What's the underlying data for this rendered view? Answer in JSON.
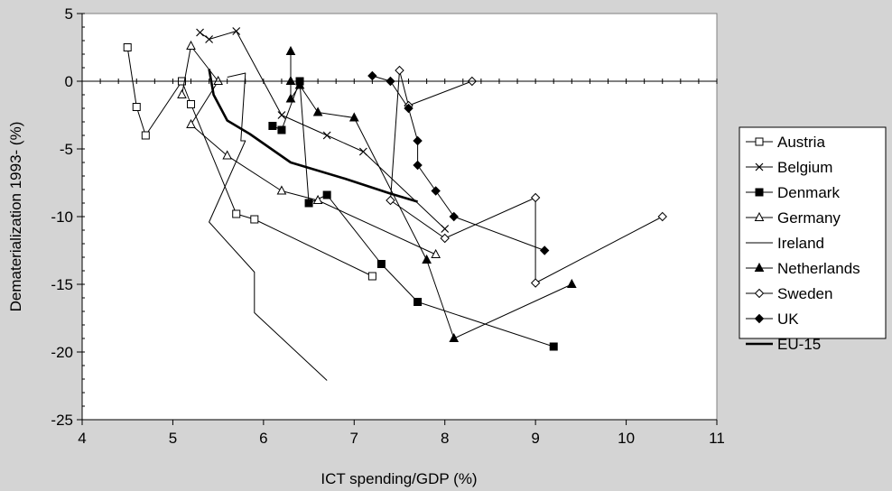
{
  "chart_data": {
    "type": "line",
    "title": "",
    "xlabel": "ICT spending/GDP (%)",
    "ylabel": "Dematerialization 1993- (%)",
    "xlim": [
      4,
      11
    ],
    "ylim": [
      -25,
      5
    ],
    "xticks": [
      4,
      5,
      6,
      7,
      8,
      9,
      10,
      11
    ],
    "yticks": [
      5,
      0,
      -5,
      -10,
      -15,
      -20,
      -25
    ],
    "grid": false,
    "legend_position": "right",
    "plot_background": "#ffffff",
    "page_background": "#d4d4d4",
    "series": [
      {
        "name": "Austria",
        "marker": "square-open",
        "line_width": 1,
        "x": [
          4.5,
          4.6,
          4.7,
          5.1,
          5.2,
          5.7,
          5.9,
          7.2
        ],
        "y": [
          2.5,
          -1.9,
          -4.0,
          0.0,
          -1.7,
          -9.8,
          -10.2,
          -14.4
        ]
      },
      {
        "name": "Belgium",
        "marker": "cross",
        "line_width": 1,
        "x": [
          5.3,
          5.4,
          5.7,
          6.2,
          6.7,
          7.1,
          8.0
        ],
        "y": [
          3.6,
          3.1,
          3.7,
          -2.5,
          -4.0,
          -5.2,
          -10.9
        ]
      },
      {
        "name": "Denmark",
        "marker": "square-filled",
        "line_width": 1,
        "x": [
          6.1,
          6.2,
          6.4,
          6.5,
          6.7,
          7.3,
          7.7,
          9.2
        ],
        "y": [
          -3.3,
          -3.6,
          0.0,
          -9.0,
          -8.4,
          -13.5,
          -16.3,
          -19.6
        ]
      },
      {
        "name": "Germany",
        "marker": "triangle-open",
        "line_width": 1,
        "x": [
          5.1,
          5.2,
          5.5,
          5.2,
          5.6,
          6.2,
          6.6,
          7.9
        ],
        "y": [
          -1.0,
          2.6,
          0.0,
          -3.2,
          -5.5,
          -8.1,
          -8.8,
          -12.8
        ]
      },
      {
        "name": "Ireland",
        "marker": "none",
        "line_width": 1,
        "x": [
          5.6,
          5.8,
          5.75,
          5.8,
          5.4,
          5.9,
          5.9,
          6.7
        ],
        "y": [
          0.3,
          0.6,
          -4.4,
          -4.4,
          -10.4,
          -14.1,
          -17.1,
          -22.1
        ]
      },
      {
        "name": "Netherlands",
        "marker": "triangle-filled",
        "line_width": 1,
        "x": [
          6.3,
          6.3,
          6.3,
          6.4,
          6.6,
          7.0,
          7.8,
          8.1,
          9.4
        ],
        "y": [
          0.0,
          2.2,
          -1.3,
          -0.3,
          -2.3,
          -2.7,
          -13.2,
          -19.0,
          -15.0
        ]
      },
      {
        "name": "Sweden",
        "marker": "diamond-open",
        "line_width": 1,
        "x": [
          8.3,
          7.6,
          7.5,
          7.4,
          8.0,
          9.0,
          9.0,
          10.4
        ],
        "y": [
          0.0,
          -1.8,
          0.8,
          -8.8,
          -11.6,
          -8.6,
          -14.9,
          -10.0
        ]
      },
      {
        "name": "UK",
        "marker": "diamond-filled",
        "line_width": 1,
        "x": [
          7.2,
          7.4,
          7.6,
          7.7,
          7.7,
          7.9,
          8.1,
          9.1
        ],
        "y": [
          0.4,
          0.0,
          -2.0,
          -4.4,
          -6.2,
          -8.1,
          -10.0,
          -12.5
        ]
      },
      {
        "name": "EU-15",
        "marker": "none",
        "line_width": 2.6,
        "x": [
          5.4,
          5.45,
          5.6,
          5.85,
          6.3,
          6.9,
          7.4,
          7.7
        ],
        "y": [
          0.9,
          -1.0,
          -2.9,
          -3.9,
          -6.0,
          -7.2,
          -8.3,
          -8.9
        ]
      }
    ]
  }
}
